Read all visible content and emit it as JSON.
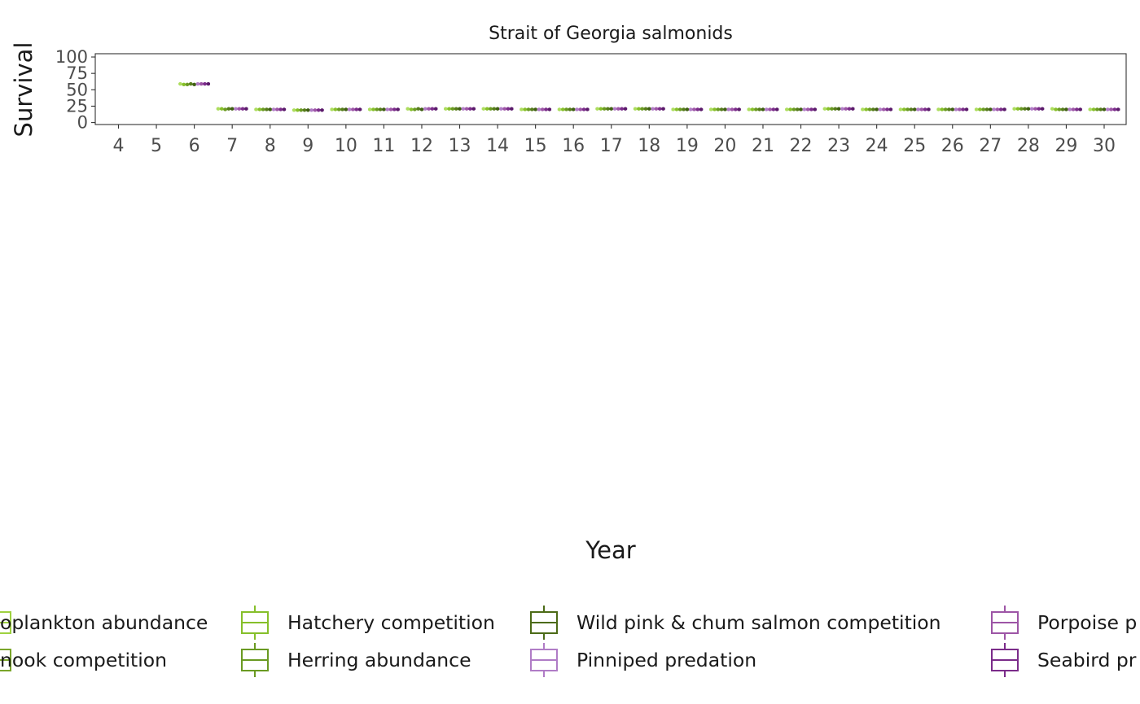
{
  "chart_data": {
    "type": "box",
    "title": "Strait of Georgia salmonids",
    "xlabel": "Year",
    "ylabel": "Survival",
    "categories": [
      "4",
      "5",
      "6",
      "7",
      "8",
      "9",
      "10",
      "11",
      "12",
      "13",
      "14",
      "15",
      "16",
      "17",
      "18",
      "19",
      "20",
      "21",
      "22",
      "23",
      "24",
      "25",
      "26",
      "27",
      "28",
      "29",
      "30"
    ],
    "yticks": [
      0,
      25,
      50,
      75,
      100
    ],
    "ylim": [
      -3,
      105
    ],
    "series": [
      {
        "name": "Zooplankton abundance",
        "color": "#addd5e",
        "values": [
          null,
          null,
          59,
          21,
          20,
          19,
          20,
          20,
          21,
          21,
          21,
          20,
          20,
          21,
          21,
          20,
          20,
          20,
          20,
          21,
          20,
          20,
          20,
          20,
          21,
          21,
          20
        ]
      },
      {
        "name": "Hatchery competition",
        "color": "#86bf2a",
        "values": [
          null,
          null,
          58,
          21,
          20,
          19,
          20,
          20,
          20,
          21,
          21,
          20,
          20,
          21,
          21,
          20,
          20,
          20,
          20,
          21,
          20,
          20,
          20,
          20,
          21,
          20,
          20
        ]
      },
      {
        "name": "Chinook competition",
        "color": "#6a9a22",
        "values": [
          null,
          null,
          58,
          20,
          20,
          19,
          20,
          20,
          20,
          21,
          21,
          20,
          20,
          21,
          21,
          20,
          20,
          20,
          20,
          21,
          20,
          20,
          20,
          20,
          21,
          20,
          20
        ]
      },
      {
        "name": "Herring abundance",
        "color": "#567c1b",
        "values": [
          null,
          null,
          59,
          21,
          20,
          19,
          20,
          20,
          21,
          21,
          21,
          20,
          20,
          21,
          21,
          20,
          20,
          20,
          20,
          21,
          20,
          20,
          20,
          20,
          21,
          20,
          20
        ]
      },
      {
        "name": "Wild pink & chum salmon competition",
        "color": "#3f5f12",
        "values": [
          null,
          null,
          58,
          21,
          20,
          19,
          20,
          20,
          20,
          21,
          21,
          20,
          20,
          21,
          21,
          20,
          20,
          20,
          20,
          21,
          20,
          20,
          20,
          20,
          21,
          20,
          20
        ]
      },
      {
        "name": "Pinniped predation",
        "color": "#b07cc6",
        "values": [
          null,
          null,
          59,
          21,
          20,
          19,
          20,
          20,
          21,
          21,
          21,
          20,
          20,
          21,
          21,
          20,
          20,
          20,
          20,
          21,
          20,
          20,
          20,
          20,
          21,
          20,
          20
        ]
      },
      {
        "name": "Porpoise predation",
        "color": "#9d55a6",
        "values": [
          null,
          null,
          59,
          21,
          20,
          19,
          20,
          20,
          21,
          21,
          21,
          20,
          20,
          21,
          21,
          20,
          20,
          20,
          20,
          21,
          20,
          20,
          20,
          20,
          21,
          20,
          20
        ]
      },
      {
        "name": "Seabird predation",
        "color": "#7b2c8a",
        "values": [
          null,
          null,
          59,
          21,
          20,
          19,
          20,
          20,
          21,
          21,
          21,
          20,
          20,
          21,
          21,
          20,
          20,
          20,
          20,
          21,
          20,
          20,
          20,
          20,
          21,
          20,
          20
        ]
      },
      {
        "name": "",
        "color": "#5b1a6b",
        "values": [
          null,
          null,
          59,
          21,
          20,
          19,
          20,
          20,
          21,
          21,
          21,
          20,
          20,
          21,
          21,
          20,
          20,
          20,
          20,
          21,
          20,
          20,
          20,
          20,
          21,
          20,
          20
        ]
      }
    ],
    "legend": [
      {
        "label": "Zooplankton abundance",
        "color": "#9ed13f"
      },
      {
        "label": "Hatchery competition",
        "color": "#86bf2a"
      },
      {
        "label": "Wild pink & chum salmon competition",
        "color": "#4c6b17"
      },
      {
        "label": "Porpoise predation",
        "color": "#9d55a6"
      },
      {
        "label": "Chinook competition",
        "color": "#7aa52a"
      },
      {
        "label": "Herring abundance",
        "color": "#6a9a22"
      },
      {
        "label": "Pinniped predation",
        "color": "#b07cc6"
      },
      {
        "label": "Seabird predation",
        "color": "#7b2c8a"
      }
    ],
    "legend_display": [
      "oplankton abundance",
      "Hatchery competition",
      "Wild pink & chum salmon competition",
      "Porpoise p",
      "nook competition",
      "Herring abundance",
      "Pinniped predation",
      "Seabird pr"
    ],
    "legend_position": "bottom",
    "grid": false
  }
}
